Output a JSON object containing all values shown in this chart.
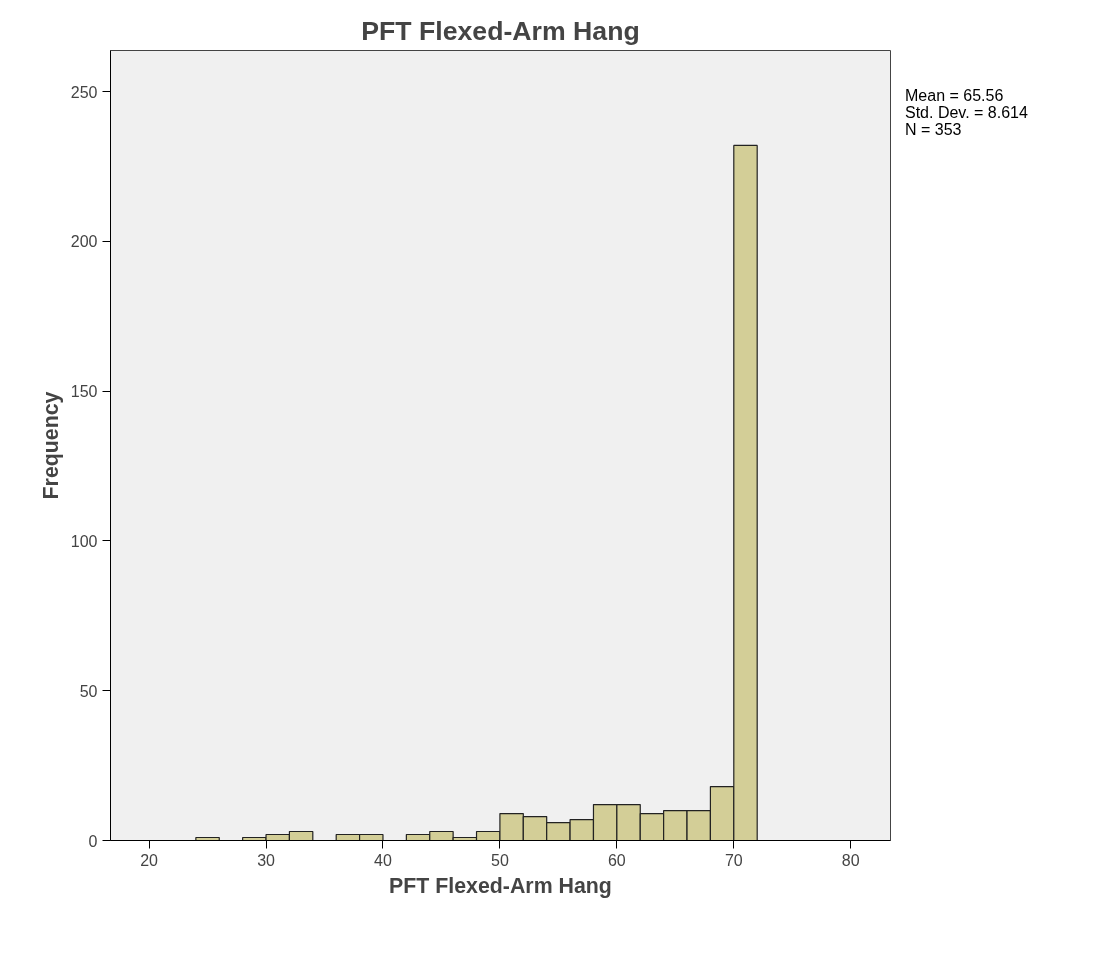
{
  "chart_data": {
    "type": "histogram",
    "title": "PFT Flexed-Arm Hang",
    "xlabel": "PFT Flexed-Arm Hang",
    "ylabel": "Frequency",
    "bins": [
      24,
      26,
      28,
      30,
      32,
      34,
      36,
      38,
      40,
      42,
      44,
      46,
      48,
      50,
      52,
      54,
      56,
      58,
      60,
      62,
      64,
      66,
      68,
      70,
      72
    ],
    "values": [
      1,
      0,
      1,
      2,
      3,
      0,
      2,
      2,
      0,
      2,
      3,
      1,
      3,
      9,
      8,
      6,
      7,
      12,
      12,
      9,
      10,
      10,
      18,
      232
    ],
    "color": "#d3ce97",
    "xlim": [
      16.7,
      83.4
    ],
    "ylim": [
      0,
      263.7
    ],
    "xticks": [
      20,
      30,
      40,
      50,
      60,
      70,
      80
    ],
    "yticks": [
      0,
      50,
      100,
      150,
      200,
      250
    ],
    "annotations": [
      "Mean = 65.56\nStd. Dev. = 8.614\nN = 353"
    ],
    "grid": false
  }
}
